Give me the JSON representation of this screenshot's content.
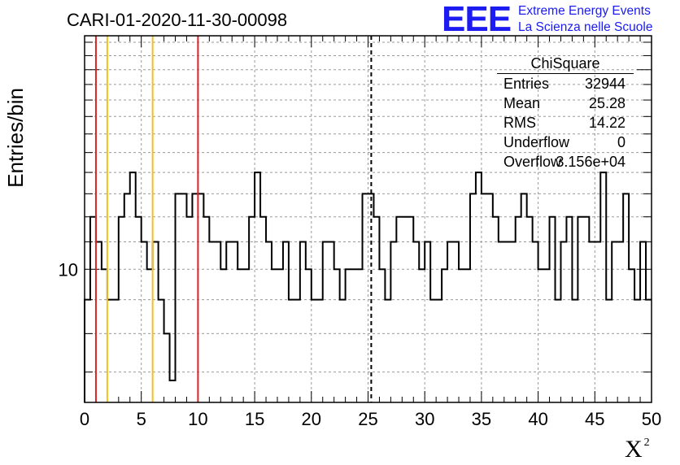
{
  "chart_data": {
    "type": "histogram",
    "title": "CARI-01-2020-11-30-00098",
    "xlabel": "X",
    "xlabel_superscript": "2",
    "ylabel": "Entries/bin",
    "xlim": [
      0,
      50
    ],
    "ylog": true,
    "ylim": [
      6.3,
      22.5
    ],
    "grid": true,
    "xticks": [
      0,
      5,
      10,
      15,
      20,
      25,
      30,
      35,
      40,
      45,
      50
    ],
    "xtick_labels": [
      "0",
      "5",
      "10",
      "15",
      "20",
      "25",
      "30",
      "35",
      "40",
      "45",
      "50"
    ],
    "ytick_labels": [
      {
        "value": 10,
        "label": "10"
      }
    ],
    "bin_width": 0.5,
    "x_start": 0,
    "values": [
      9,
      12,
      11,
      10,
      9,
      9,
      12,
      13,
      14,
      12,
      11,
      10,
      11,
      9,
      8,
      6.8,
      13,
      13,
      12,
      13,
      13,
      12,
      11,
      11,
      10,
      11,
      11,
      10,
      10,
      12,
      14,
      12,
      11,
      10,
      10,
      11,
      9,
      9,
      11,
      10,
      9,
      9,
      11,
      11,
      10,
      9,
      10,
      10,
      10,
      13,
      13,
      12,
      10,
      9,
      11,
      12,
      12,
      12,
      11,
      10,
      11,
      9,
      9,
      10,
      11,
      11,
      10,
      10,
      13,
      14,
      13,
      13,
      12,
      11,
      11,
      11,
      12,
      13,
      12,
      11,
      10,
      10,
      12,
      9,
      11,
      12,
      9,
      12,
      12,
      11,
      11,
      14,
      9,
      11,
      11,
      13,
      10,
      9,
      11,
      9
    ],
    "vertical_lines": [
      {
        "x": 1,
        "color": "#dd2222",
        "style": "solid"
      },
      {
        "x": 2,
        "color": "#f2c01e",
        "style": "solid"
      },
      {
        "x": 6,
        "color": "#f2c01e",
        "style": "solid"
      },
      {
        "x": 10,
        "color": "#dd2222",
        "style": "solid"
      },
      {
        "x": 25.28,
        "color": "#000000",
        "style": "dashed"
      }
    ],
    "stats": {
      "name": "ChiSquare",
      "rows": [
        {
          "key": "Entries",
          "value": "32944"
        },
        {
          "key": "Mean",
          "value": "25.28"
        },
        {
          "key": "RMS",
          "value": "14.22"
        },
        {
          "key": "Underflow",
          "value": "0"
        },
        {
          "key": "Overflow",
          "value": "3.156e+04"
        }
      ]
    },
    "logo": {
      "text": "EEE",
      "line1": "Extreme Energy Events",
      "line2": "La Scienza nelle Scuole",
      "color": "#1b1bf2"
    }
  }
}
